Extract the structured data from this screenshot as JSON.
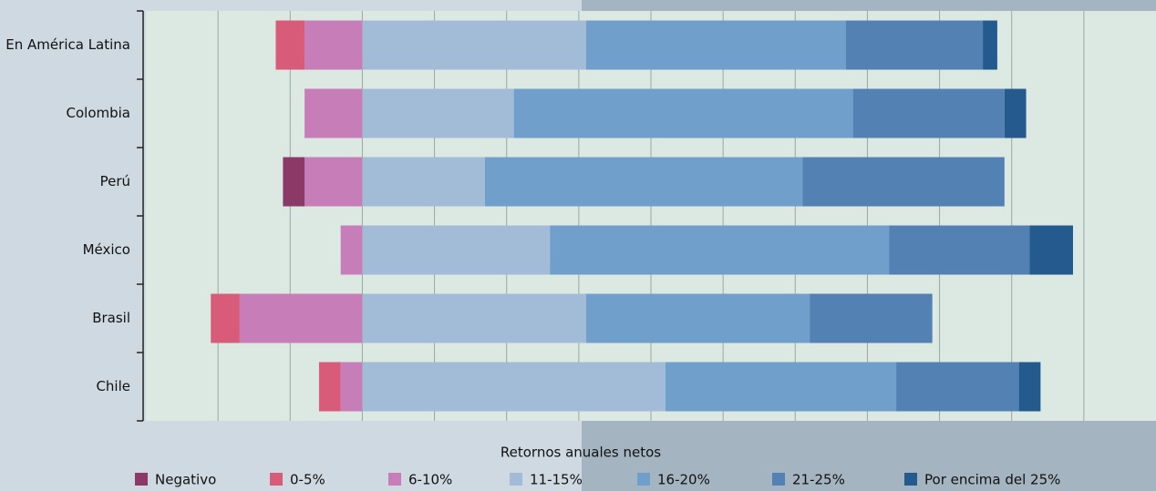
{
  "chart_data": {
    "type": "diverging_bar",
    "xlabel": "Retornos anuales netos",
    "categories": [
      "En América Latina",
      "Colombia",
      "Perú",
      "México",
      "Brasil",
      "Chile"
    ],
    "series": [
      {
        "name": "Negativo",
        "color": "#8b3a68",
        "values": [
          0,
          0,
          -3,
          0,
          0,
          0
        ]
      },
      {
        "name": "0-5%",
        "color": "#d95b7a",
        "values": [
          -4,
          0,
          0,
          0,
          -4,
          -3
        ]
      },
      {
        "name": "6-10%",
        "color": "#c77db8",
        "values": [
          -8,
          -8,
          -8,
          -3,
          -17,
          -3
        ]
      },
      {
        "name": "11-15%",
        "color": "#a2bcd8",
        "values": [
          31,
          21,
          17,
          26,
          31,
          42
        ]
      },
      {
        "name": "16-20%",
        "color": "#6f9fca",
        "values": [
          36,
          47,
          44,
          47,
          31,
          32
        ]
      },
      {
        "name": "21-25%",
        "color": "#5381b3",
        "values": [
          19,
          21,
          28,
          19.5,
          17,
          17
        ]
      },
      {
        "name": "Por encima del 25%",
        "color": "#245a8e",
        "values": [
          2,
          3,
          0,
          6,
          0,
          3
        ]
      }
    ],
    "xlim": [
      -30,
      110
    ],
    "xticks": [
      -20,
      -10,
      0,
      10,
      20,
      30,
      40,
      50,
      60,
      70,
      80,
      90,
      100
    ],
    "tick_labels": false,
    "grid": true,
    "legend": "bottom"
  }
}
